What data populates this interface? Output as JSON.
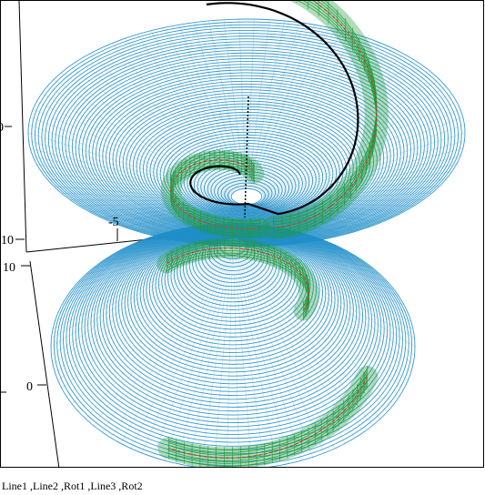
{
  "caption": "Line1 ,Line2 ,Rot1 ,Line3 ,Rot2",
  "colors": {
    "surface": "#1f8ec9",
    "tube": "#1f9a3a",
    "core_line": "#d23a28",
    "spine": "#000000",
    "axes": "#000000",
    "background": "#ffffff"
  },
  "chart_data": {
    "type": "3d-surface",
    "title": "",
    "series_labels": [
      "Line1",
      "Line2",
      "Rot1",
      "Line3",
      "Rot2"
    ],
    "axis_tick_labels": {
      "left_upper_partial": "0",
      "left_mid": "10",
      "left_lower_top": "10",
      "left_lower": "0",
      "inner_axis": "-5"
    },
    "grid": false,
    "legend": "none"
  }
}
